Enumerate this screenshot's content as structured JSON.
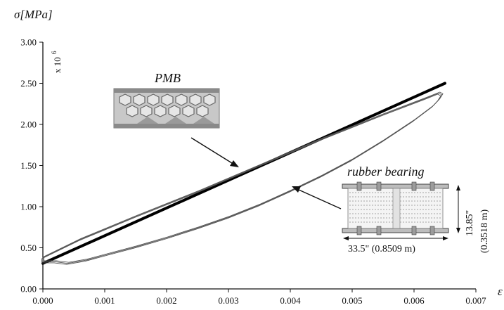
{
  "chart_data": {
    "type": "line",
    "ylabel": "σ[MPa]",
    "xlabel": "ε",
    "y_multiplier": "x 10",
    "y_multiplier_exp": "6",
    "xlim": [
      0,
      0.007
    ],
    "ylim": [
      0,
      3.0
    ],
    "x_ticks": [
      "0.000",
      "0.001",
      "0.002",
      "0.003",
      "0.004",
      "0.005",
      "0.006",
      "0.007"
    ],
    "y_ticks": [
      "0.00",
      "0.50",
      "1.00",
      "1.50",
      "2.00",
      "2.50",
      "3.00"
    ],
    "grid": false,
    "series": [
      {
        "name": "PMB",
        "style": "thick",
        "x": [
          0.0,
          0.0065
        ],
        "y": [
          0.31,
          2.5
        ]
      },
      {
        "name": "rubber bearing",
        "style": "thin-loop",
        "x": [
          0.0,
          0.0006,
          0.0015,
          0.0025,
          0.0035,
          0.0045,
          0.0055,
          0.0062,
          0.0064,
          0.00645,
          0.0064,
          0.0063,
          0.006,
          0.0055,
          0.005,
          0.0045,
          0.004,
          0.0035,
          0.003,
          0.0025,
          0.002,
          0.0015,
          0.001,
          0.0007,
          0.0004,
          0.0002,
          0.0,
          0.0
        ],
        "y": [
          0.38,
          0.6,
          0.88,
          1.18,
          1.5,
          1.82,
          2.12,
          2.32,
          2.38,
          2.36,
          2.3,
          2.22,
          2.05,
          1.8,
          1.57,
          1.37,
          1.19,
          1.02,
          0.87,
          0.74,
          0.62,
          0.51,
          0.41,
          0.35,
          0.31,
          0.33,
          0.33,
          0.38
        ]
      }
    ],
    "annotations": {
      "pmb_label": "PMB",
      "rubber_label": "rubber bearing",
      "height_dim": "13.85\"",
      "height_metric": "(0.3518 m)",
      "width_dim": "33.5\" (0.8509 m)"
    },
    "colors": {
      "pmb_line": "#000000",
      "loop_line": "#555555",
      "structure": "#8a8a8a"
    }
  }
}
